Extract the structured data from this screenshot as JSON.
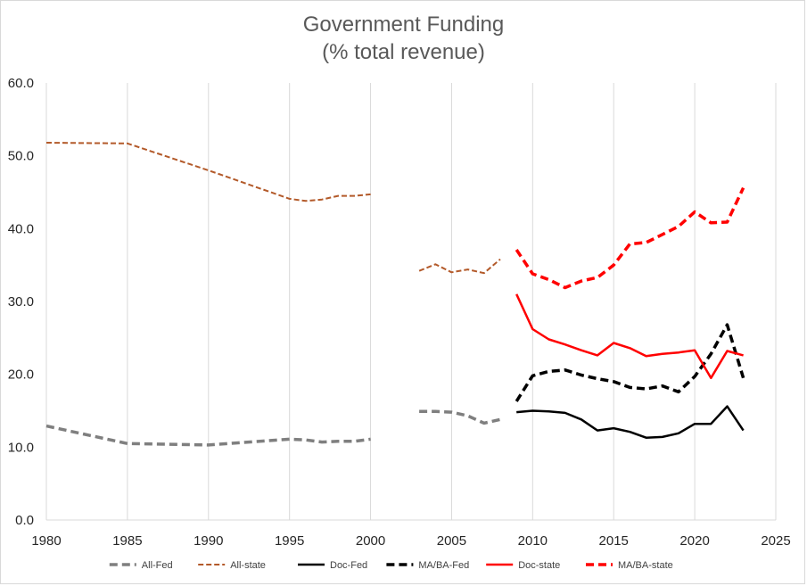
{
  "chart_data": {
    "type": "line",
    "title": "Government Funding",
    "subtitle": "(% total revenue)",
    "xlabel": "",
    "ylabel": "",
    "xlim": [
      1980,
      2025
    ],
    "ylim": [
      0,
      60
    ],
    "x_ticks": [
      "1980",
      "1985",
      "1990",
      "1995",
      "2000",
      "2005",
      "2010",
      "2015",
      "2020",
      "2025"
    ],
    "y_ticks": [
      "0.0",
      "10.0",
      "20.0",
      "30.0",
      "40.0",
      "50.0",
      "60.0"
    ],
    "grid": "vertical",
    "legend_position": "bottom",
    "series": [
      {
        "name": "All-Fed",
        "color": "#7f7f7f",
        "style": "dashed-thick",
        "segments": [
          [
            [
              1980,
              12.9
            ],
            [
              1985,
              10.5
            ],
            [
              1990,
              10.3
            ],
            [
              1995,
              11.1
            ],
            [
              1996,
              11.0
            ],
            [
              1997,
              10.7
            ],
            [
              1998,
              10.8
            ],
            [
              1999,
              10.8
            ],
            [
              2000,
              11.1
            ]
          ],
          [
            [
              2003,
              14.9
            ],
            [
              2004,
              14.9
            ],
            [
              2005,
              14.8
            ],
            [
              2006,
              14.3
            ],
            [
              2007,
              13.3
            ],
            [
              2008,
              13.8
            ]
          ]
        ]
      },
      {
        "name": "All-state",
        "color": "#b35a2a",
        "style": "dashed-thin",
        "segments": [
          [
            [
              1980,
              51.8
            ],
            [
              1985,
              51.7
            ],
            [
              1990,
              48.0
            ],
            [
              1995,
              44.1
            ],
            [
              1996,
              43.8
            ],
            [
              1997,
              44.0
            ],
            [
              1998,
              44.5
            ],
            [
              1999,
              44.5
            ],
            [
              2000,
              44.7
            ]
          ],
          [
            [
              2003,
              34.2
            ],
            [
              2004,
              35.1
            ],
            [
              2005,
              34.0
            ],
            [
              2006,
              34.4
            ],
            [
              2007,
              33.9
            ],
            [
              2008,
              35.8
            ]
          ]
        ]
      },
      {
        "name": "Doc-Fed",
        "color": "#000000",
        "style": "solid",
        "segments": [
          [
            [
              2009,
              14.8
            ],
            [
              2010,
              15.0
            ],
            [
              2011,
              14.9
            ],
            [
              2012,
              14.7
            ],
            [
              2013,
              13.8
            ],
            [
              2014,
              12.3
            ],
            [
              2015,
              12.6
            ],
            [
              2016,
              12.1
            ],
            [
              2017,
              11.3
            ],
            [
              2018,
              11.4
            ],
            [
              2019,
              11.9
            ],
            [
              2020,
              13.2
            ],
            [
              2021,
              13.2
            ],
            [
              2022,
              15.6
            ],
            [
              2023,
              12.3
            ]
          ]
        ]
      },
      {
        "name": "MA/BA-Fed",
        "color": "#000000",
        "style": "dashed-thick",
        "segments": [
          [
            [
              2009,
              16.3
            ],
            [
              2010,
              19.8
            ],
            [
              2011,
              20.4
            ],
            [
              2012,
              20.6
            ],
            [
              2013,
              19.9
            ],
            [
              2014,
              19.4
            ],
            [
              2015,
              19.0
            ],
            [
              2016,
              18.2
            ],
            [
              2017,
              18.0
            ],
            [
              2018,
              18.4
            ],
            [
              2019,
              17.6
            ],
            [
              2020,
              19.7
            ],
            [
              2021,
              22.8
            ],
            [
              2022,
              26.8
            ],
            [
              2023,
              19.5
            ]
          ]
        ]
      },
      {
        "name": "Doc-state",
        "color": "#ff0000",
        "style": "solid",
        "segments": [
          [
            [
              2009,
              31.0
            ],
            [
              2010,
              26.2
            ],
            [
              2011,
              24.8
            ],
            [
              2012,
              24.1
            ],
            [
              2013,
              23.3
            ],
            [
              2014,
              22.6
            ],
            [
              2015,
              24.3
            ],
            [
              2016,
              23.6
            ],
            [
              2017,
              22.5
            ],
            [
              2018,
              22.8
            ],
            [
              2019,
              23.0
            ],
            [
              2020,
              23.3
            ],
            [
              2021,
              19.5
            ],
            [
              2022,
              23.2
            ],
            [
              2023,
              22.6
            ]
          ]
        ]
      },
      {
        "name": "MA/BA-state",
        "color": "#ff0000",
        "style": "dashed-thick",
        "segments": [
          [
            [
              2009,
              37.1
            ],
            [
              2010,
              33.8
            ],
            [
              2011,
              33.0
            ],
            [
              2012,
              31.9
            ],
            [
              2013,
              32.8
            ],
            [
              2014,
              33.3
            ],
            [
              2015,
              35.0
            ],
            [
              2016,
              37.9
            ],
            [
              2017,
              38.1
            ],
            [
              2018,
              39.2
            ],
            [
              2019,
              40.3
            ],
            [
              2020,
              42.3
            ],
            [
              2021,
              40.8
            ],
            [
              2022,
              40.9
            ],
            [
              2023,
              45.6
            ]
          ]
        ]
      }
    ]
  }
}
